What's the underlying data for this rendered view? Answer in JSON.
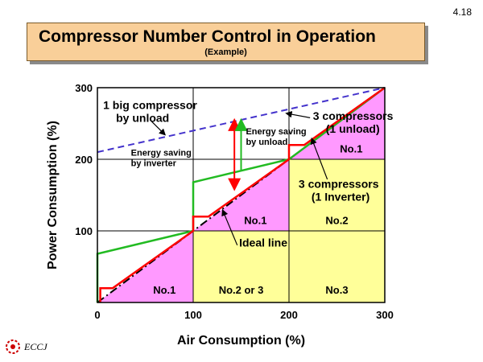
{
  "page_number": "4.18",
  "title": "Compressor Number Control in Operation",
  "subtitle": "(Example)",
  "logo_text": "ECCJ",
  "colors": {
    "pink": "#ff99ff",
    "yellow": "#ffff99",
    "red": "#ff0000",
    "green": "#22bb22",
    "blue": "#4433cc"
  },
  "chart_data": {
    "type": "line",
    "xlabel": "Air Consumption (%)",
    "ylabel": "Power Consumption (%)",
    "xlim": [
      0,
      300
    ],
    "ylim": [
      0,
      300
    ],
    "xticks": [
      0,
      100,
      200,
      300
    ],
    "yticks": [
      100,
      200,
      300
    ],
    "grid": true,
    "series": [
      {
        "name": "Ideal line",
        "style": "dash-dot",
        "color": "#000000",
        "points": [
          [
            0,
            0
          ],
          [
            300,
            300
          ]
        ]
      },
      {
        "name": "1 big compressor by unload",
        "style": "dashed",
        "color": "#4433cc",
        "points": [
          [
            0,
            210
          ],
          [
            300,
            300
          ]
        ]
      },
      {
        "name": "3 compressors (1 unload)",
        "style": "solid",
        "color": "#22bb22",
        "points": [
          [
            0,
            0
          ],
          [
            0,
            68
          ],
          [
            100,
            100
          ],
          [
            100,
            168
          ],
          [
            200,
            200
          ],
          [
            200,
            200
          ],
          [
            300,
            300
          ]
        ]
      },
      {
        "name": "3 compressors (1 Inverter)",
        "style": "solid",
        "color": "#ff0000",
        "points": [
          [
            3,
            0
          ],
          [
            3,
            20
          ],
          [
            16,
            20
          ],
          [
            100,
            100
          ],
          [
            100,
            120
          ],
          [
            116,
            120
          ],
          [
            200,
            200
          ],
          [
            200,
            220
          ],
          [
            216,
            220
          ],
          [
            300,
            300
          ]
        ]
      }
    ],
    "regions": [
      {
        "label": "No.1",
        "fill": "pink",
        "polygon": [
          [
            0,
            0
          ],
          [
            100,
            0
          ],
          [
            100,
            100
          ]
        ],
        "label_at": [
          70,
          18
        ]
      },
      {
        "label": "No.2 or 3",
        "fill": "yellow",
        "polygon": [
          [
            100,
            0
          ],
          [
            200,
            0
          ],
          [
            200,
            100
          ],
          [
            100,
            100
          ]
        ],
        "label_at": [
          150,
          18
        ]
      },
      {
        "label": "No.3",
        "fill": "yellow",
        "polygon": [
          [
            200,
            0
          ],
          [
            300,
            0
          ],
          [
            300,
            100
          ],
          [
            200,
            100
          ]
        ],
        "label_at": [
          250,
          18
        ]
      },
      {
        "label": "No.1",
        "fill": "pink",
        "polygon": [
          [
            100,
            100
          ],
          [
            200,
            100
          ],
          [
            200,
            200
          ]
        ],
        "label_at": [
          165,
          115
        ]
      },
      {
        "label": "No.2",
        "fill": "yellow",
        "polygon": [
          [
            200,
            100
          ],
          [
            300,
            100
          ],
          [
            300,
            200
          ],
          [
            200,
            200
          ]
        ],
        "label_at": [
          250,
          115
        ]
      },
      {
        "label": "No.1",
        "fill": "pink",
        "polygon": [
          [
            200,
            200
          ],
          [
            300,
            200
          ],
          [
            300,
            300
          ]
        ],
        "label_at": [
          265,
          215
        ]
      }
    ],
    "annotations": [
      {
        "text": [
          "1 big compressor",
          "by unload"
        ],
        "color": "#000000",
        "at": [
          6,
          270
        ],
        "size": "large"
      },
      {
        "text": [
          "3 compressors",
          "(1 unload)"
        ],
        "color": "#000000",
        "at": [
          225,
          255
        ],
        "size": "large"
      },
      {
        "text": [
          "3 compressors",
          "(1 Inverter)"
        ],
        "color": "#000000",
        "at": [
          210,
          160
        ],
        "size": "large"
      },
      {
        "text": [
          "Energy saving",
          "by unload"
        ],
        "color": "#000000",
        "at": [
          155,
          235
        ],
        "size": "small"
      },
      {
        "text": [
          "Energy saving",
          "by inverter"
        ],
        "color": "#000000",
        "at": [
          35,
          205
        ],
        "size": "small"
      },
      {
        "text": [
          "Ideal line"
        ],
        "color": "#000000",
        "at": [
          148,
          78
        ],
        "size": "large"
      }
    ],
    "arrows": [
      {
        "name": "energy-saving-unload-arrow",
        "color": "#ff0000",
        "from": [
          143,
          253
        ],
        "to": [
          143,
          160
        ],
        "double": true
      },
      {
        "name": "energy-saving-inverter-arrow",
        "color": "#22bb22",
        "from": [
          150,
          185
        ],
        "to": [
          150,
          253
        ],
        "double": false
      }
    ],
    "pointer_lines": [
      {
        "name": "big-compressor-pointer",
        "from": [
          55,
          255
        ],
        "to": [
          70,
          235
        ]
      },
      {
        "name": "unload-pointer",
        "from": [
          222,
          258
        ],
        "to": [
          198,
          264
        ]
      },
      {
        "name": "inverter-pointer",
        "from": [
          240,
          172
        ],
        "to": [
          224,
          228
        ]
      },
      {
        "name": "ideal-line-pointer",
        "from": [
          146,
          80
        ],
        "to": [
          131,
          128
        ]
      }
    ]
  }
}
